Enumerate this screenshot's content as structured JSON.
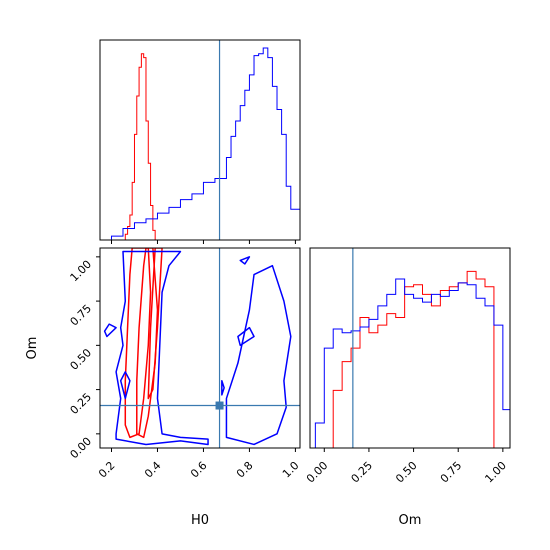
{
  "chart_data": {
    "type": "corner",
    "parameters": [
      "H0",
      "Om"
    ],
    "truth": {
      "H0": 0.67,
      "Om": 0.16
    },
    "colors": {
      "red": "#ff0000",
      "blue": "#0000ff",
      "truth": "#3a79b0"
    },
    "panels": [
      {
        "id": "hist_H0",
        "type": "histogram",
        "xlim": [
          0.15,
          1.02
        ],
        "series": [
          {
            "color": "red",
            "edges": [
              0.25,
              0.26,
              0.27,
              0.28,
              0.29,
              0.3,
              0.31,
              0.32,
              0.33,
              0.34,
              0.35,
              0.36,
              0.37,
              0.38,
              0.39,
              0.4
            ],
            "values": [
              0.0,
              0.03,
              0.07,
              0.13,
              0.3,
              0.55,
              0.75,
              0.9,
              0.97,
              0.95,
              0.62,
              0.4,
              0.18,
              0.05,
              0.0
            ]
          },
          {
            "color": "blue",
            "edges": [
              0.15,
              0.2,
              0.25,
              0.3,
              0.35,
              0.4,
              0.45,
              0.5,
              0.55,
              0.6,
              0.65,
              0.7,
              0.72,
              0.74,
              0.76,
              0.78,
              0.8,
              0.82,
              0.84,
              0.86,
              0.88,
              0.9,
              0.92,
              0.94,
              0.96,
              0.98,
              1.02
            ],
            "values": [
              0.0,
              0.02,
              0.06,
              0.09,
              0.11,
              0.14,
              0.17,
              0.21,
              0.24,
              0.3,
              0.32,
              0.43,
              0.54,
              0.62,
              0.7,
              0.78,
              0.86,
              0.96,
              0.97,
              1.0,
              0.95,
              0.8,
              0.68,
              0.55,
              0.28,
              0.16
            ]
          }
        ]
      },
      {
        "id": "contour_H0_Om",
        "type": "contour",
        "xlabel": "H0",
        "ylabel": "Om",
        "xlim": [
          0.15,
          1.02
        ],
        "ylim": [
          -0.08,
          1.05
        ],
        "xticks": [
          "0.2",
          "0.4",
          "0.6",
          "0.8",
          "1.0"
        ],
        "yticks": [
          "0.00",
          "0.25",
          "0.50",
          "0.75",
          "1.00"
        ],
        "contours": [
          {
            "color": "red",
            "points": [
              [
                0.26,
                0.05
              ],
              [
                0.26,
                0.3
              ],
              [
                0.27,
                0.6
              ],
              [
                0.28,
                0.9
              ],
              [
                0.29,
                1.05
              ],
              [
                0.36,
                1.05
              ],
              [
                0.37,
                0.8
              ],
              [
                0.36,
                0.5
              ],
              [
                0.34,
                0.2
              ],
              [
                0.32,
                0.0
              ],
              [
                0.28,
                -0.02
              ]
            ]
          },
          {
            "color": "red",
            "points": [
              [
                0.31,
                0.0
              ],
              [
                0.31,
                0.3
              ],
              [
                0.32,
                0.6
              ],
              [
                0.34,
                0.95
              ],
              [
                0.35,
                1.05
              ],
              [
                0.38,
                1.05
              ],
              [
                0.4,
                0.7
              ],
              [
                0.39,
                0.4
              ],
              [
                0.36,
                0.1
              ],
              [
                0.34,
                -0.02
              ]
            ]
          },
          {
            "color": "red",
            "points": [
              [
                0.36,
                0.2
              ],
              [
                0.37,
                0.6
              ],
              [
                0.39,
                1.05
              ],
              [
                0.42,
                1.05
              ],
              [
                0.4,
                0.6
              ],
              [
                0.38,
                0.25
              ]
            ]
          },
          {
            "color": "blue",
            "points": [
              [
                0.22,
                0.0
              ],
              [
                0.24,
                0.2
              ],
              [
                0.22,
                0.35
              ],
              [
                0.25,
                0.5
              ],
              [
                0.24,
                0.6
              ],
              [
                0.26,
                0.75
              ],
              [
                0.25,
                1.03
              ],
              [
                0.5,
                1.03
              ],
              [
                0.45,
                0.95
              ],
              [
                0.42,
                0.8
              ],
              [
                0.41,
                0.5
              ],
              [
                0.4,
                0.2
              ],
              [
                0.42,
                0.0
              ],
              [
                0.5,
                -0.02
              ],
              [
                0.62,
                -0.03
              ],
              [
                0.62,
                -0.06
              ],
              [
                0.5,
                -0.04
              ],
              [
                0.35,
                -0.06
              ],
              [
                0.22,
                -0.03
              ]
            ]
          },
          {
            "color": "blue",
            "points": [
              [
                0.26,
                0.2
              ],
              [
                0.28,
                0.3
              ],
              [
                0.26,
                0.35
              ],
              [
                0.24,
                0.3
              ]
            ]
          },
          {
            "color": "blue",
            "points": [
              [
                0.18,
                0.55
              ],
              [
                0.22,
                0.6
              ],
              [
                0.19,
                0.62
              ],
              [
                0.17,
                0.58
              ]
            ]
          },
          {
            "color": "blue",
            "points": [
              [
                0.7,
                -0.02
              ],
              [
                0.82,
                -0.06
              ],
              [
                0.92,
                0.0
              ],
              [
                0.96,
                0.15
              ],
              [
                0.95,
                0.3
              ],
              [
                0.98,
                0.55
              ],
              [
                0.95,
                0.75
              ],
              [
                0.9,
                0.95
              ],
              [
                0.82,
                0.9
              ],
              [
                0.8,
                0.7
              ],
              [
                0.75,
                0.4
              ],
              [
                0.7,
                0.2
              ]
            ]
          },
          {
            "color": "blue",
            "points": [
              [
                0.76,
                0.5
              ],
              [
                0.82,
                0.55
              ],
              [
                0.8,
                0.6
              ],
              [
                0.75,
                0.55
              ]
            ]
          },
          {
            "color": "blue",
            "points": [
              [
                0.68,
                0.22
              ],
              [
                0.69,
                0.26
              ],
              [
                0.68,
                0.3
              ]
            ]
          },
          {
            "color": "blue",
            "points": [
              [
                0.76,
                0.98
              ],
              [
                0.8,
                1.0
              ],
              [
                0.78,
                0.96
              ]
            ]
          }
        ]
      },
      {
        "id": "hist_Om",
        "type": "histogram",
        "xlabel": "Om",
        "xlim": [
          -0.08,
          1.04
        ],
        "xticks": [
          "0.00",
          "0.25",
          "0.50",
          "0.75",
          "1.00"
        ],
        "series": [
          {
            "color": "red",
            "edges": [
              -0.05,
              0.0,
              0.05,
              0.1,
              0.15,
              0.2,
              0.25,
              0.3,
              0.35,
              0.4,
              0.45,
              0.5,
              0.55,
              0.6,
              0.65,
              0.7,
              0.75,
              0.8,
              0.85,
              0.9,
              0.95,
              1.0
            ],
            "values": [
              0.0,
              0.0,
              0.3,
              0.45,
              0.52,
              0.68,
              0.6,
              0.64,
              0.7,
              0.68,
              0.84,
              0.85,
              0.8,
              0.74,
              0.82,
              0.84,
              0.86,
              0.92,
              0.88,
              0.84,
              0.0
            ]
          },
          {
            "color": "blue",
            "edges": [
              -0.05,
              0.0,
              0.05,
              0.1,
              0.15,
              0.2,
              0.25,
              0.3,
              0.35,
              0.4,
              0.45,
              0.5,
              0.55,
              0.6,
              0.65,
              0.7,
              0.75,
              0.8,
              0.85,
              0.9,
              0.95,
              1.0,
              1.04
            ],
            "values": [
              0.13,
              0.52,
              0.62,
              0.6,
              0.61,
              0.63,
              0.67,
              0.74,
              0.8,
              0.88,
              0.8,
              0.78,
              0.76,
              0.8,
              0.79,
              0.82,
              0.86,
              0.85,
              0.78,
              0.74,
              0.64,
              0.2
            ]
          }
        ]
      }
    ]
  }
}
